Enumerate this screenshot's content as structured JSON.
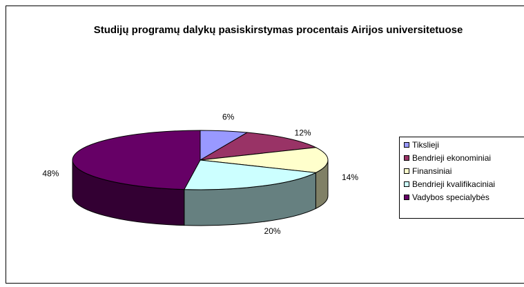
{
  "chart_data": {
    "type": "pie3d",
    "title": "Studijų programų dalykų pasiskirstymas procentais Airijos universitetuose",
    "categories": [
      "Tikslieji",
      "Bendrieji ekonominiai",
      "Finansiniai",
      "Bendrieji kvalifikaciniai",
      "Vadybos specialybės"
    ],
    "values": [
      6,
      12,
      14,
      20,
      48
    ],
    "value_labels": [
      "6%",
      "12%",
      "14%",
      "20%",
      "48%"
    ],
    "colors": [
      "#9999ff",
      "#993366",
      "#ffffcc",
      "#ccffff",
      "#660066"
    ],
    "legend": "right"
  }
}
